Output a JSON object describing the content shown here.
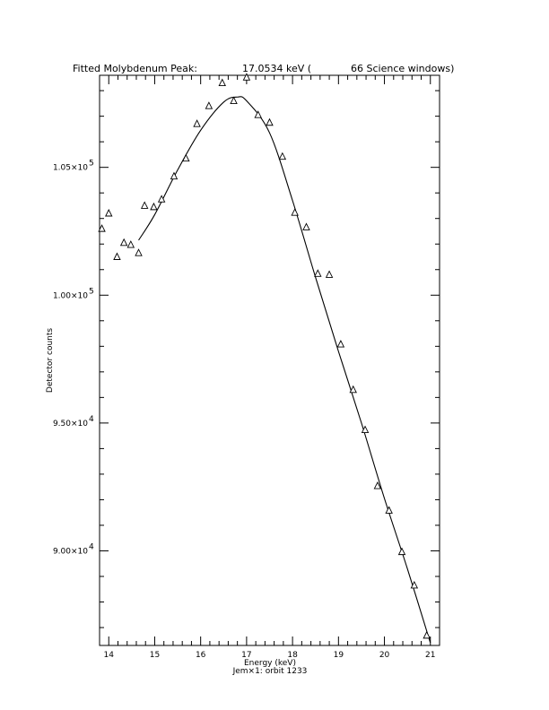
{
  "chart_data": {
    "type": "scatter",
    "title_left": "Fitted Molybdenum Peak:",
    "title_value": "17.0534 keV (",
    "title_right": "66 Science windows)",
    "xlabel": "Energy (keV)",
    "subtitle": "Jem×1: orbit 1233",
    "ylabel": "Detector counts",
    "xlim": [
      13.8,
      21.2
    ],
    "ylim": [
      86300,
      108600
    ],
    "xticks": [
      14,
      15,
      16,
      17,
      18,
      19,
      20,
      21
    ],
    "xtick_labels": [
      "14",
      "15",
      "16",
      "17",
      "18",
      "19",
      "20",
      "21"
    ],
    "yticks": [
      90000,
      95000,
      100000,
      105000
    ],
    "ytick_mantissas": [
      "9.00×10",
      "9.50×10",
      "1.00×10",
      "1.05×10"
    ],
    "ytick_exponents": [
      "4",
      "4",
      "5",
      "5"
    ],
    "series": [
      {
        "marker": "triangle",
        "x": [
          13.85,
          14.0,
          14.18,
          14.33,
          14.48,
          14.65,
          14.78,
          14.98,
          15.15,
          15.42,
          15.68,
          15.92,
          16.18,
          16.47,
          16.72,
          17.0,
          17.25,
          17.5,
          17.78,
          18.05,
          18.3,
          18.55,
          18.8,
          19.05,
          19.32,
          19.58,
          19.85,
          20.1,
          20.38,
          20.65,
          20.92
        ],
        "y": [
          102600,
          103200,
          101500,
          102050,
          101970,
          101650,
          103500,
          103450,
          103750,
          104650,
          105350,
          106700,
          107400,
          108300,
          107600,
          108520,
          107050,
          106750,
          105420,
          103230,
          102660,
          100840,
          100800,
          98080,
          96300,
          94730,
          92540,
          91580,
          89960,
          88650,
          86690
        ]
      }
    ],
    "fit_curve": {
      "x": [
        14.65,
        15.0,
        15.5,
        16.0,
        16.5,
        16.8,
        17.0,
        17.5,
        18.0,
        18.5,
        19.0,
        19.5,
        20.0,
        20.5,
        21.0
      ],
      "y": [
        102150,
        103150,
        104900,
        106450,
        107550,
        107750,
        107600,
        106350,
        103700,
        100700,
        97800,
        95000,
        92050,
        89300,
        86400
      ]
    }
  }
}
